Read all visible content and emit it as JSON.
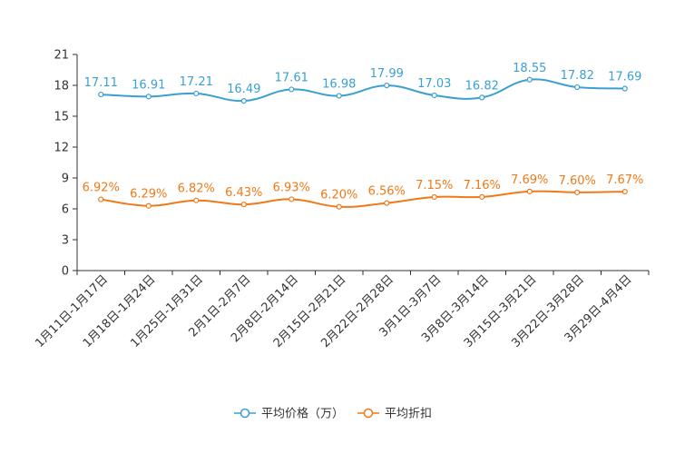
{
  "chart_data": {
    "type": "line",
    "categories": [
      "1月11日-1月17日",
      "1月18日-1月24日",
      "1月25日-1月31日",
      "2月1日-2月7日",
      "2月8日-2月14日",
      "2月15日-2月21日",
      "2月22日-2月28日",
      "3月1日-3月7日",
      "3月8日-3月14日",
      "3月15日-3月21日",
      "3月22日-3月28日",
      "3月29日-4月4日"
    ],
    "ylim": [
      0,
      21
    ],
    "yticks": [
      0,
      3,
      6,
      9,
      12,
      15,
      18,
      21
    ],
    "series": [
      {
        "name": "平均价格（万）",
        "color": "#3ba0d0",
        "values": [
          17.11,
          16.91,
          17.21,
          16.49,
          17.61,
          16.98,
          17.99,
          17.03,
          16.82,
          18.55,
          17.82,
          17.69
        ],
        "labels": [
          "17.11",
          "16.91",
          "17.21",
          "16.49",
          "17.61",
          "16.98",
          "17.99",
          "17.03",
          "16.82",
          "18.55",
          "17.82",
          "17.69"
        ]
      },
      {
        "name": "平均折扣",
        "color": "#f07918",
        "values": [
          6.92,
          6.29,
          6.82,
          6.43,
          6.93,
          6.2,
          6.56,
          7.15,
          7.16,
          7.69,
          7.6,
          7.67
        ],
        "labels": [
          "6.92%",
          "6.29%",
          "6.82%",
          "6.43%",
          "6.93%",
          "6.20%",
          "6.56%",
          "7.15%",
          "7.16%",
          "7.69%",
          "7.60%",
          "7.67%"
        ]
      }
    ],
    "legend_position": "bottom-center"
  }
}
